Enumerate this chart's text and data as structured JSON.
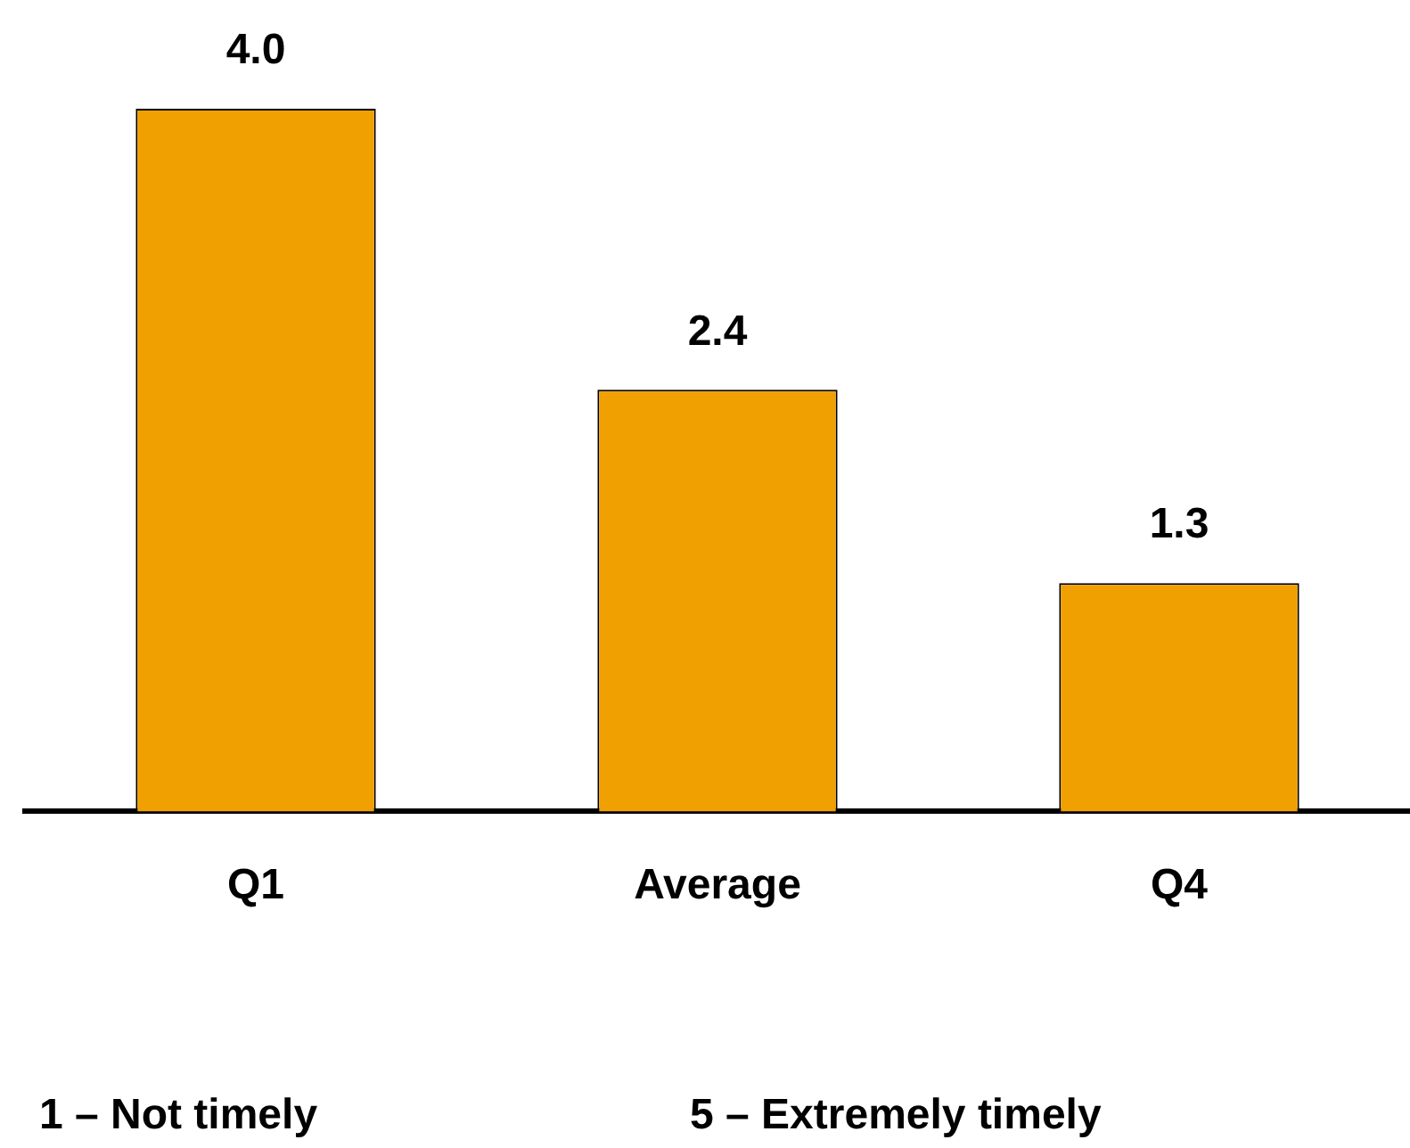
{
  "chart_data": {
    "type": "bar",
    "categories": [
      "Q1",
      "Average",
      "Q4"
    ],
    "series": [
      {
        "color": "#f0a000",
        "values": [
          4.0,
          2.4,
          1.3
        ],
        "value_labels": [
          "4.0",
          "2.4",
          "1.3"
        ]
      }
    ],
    "annotations": [
      "1 – Not timely",
      "5 – Extremely timely"
    ],
    "legend": false,
    "grid": false
  }
}
